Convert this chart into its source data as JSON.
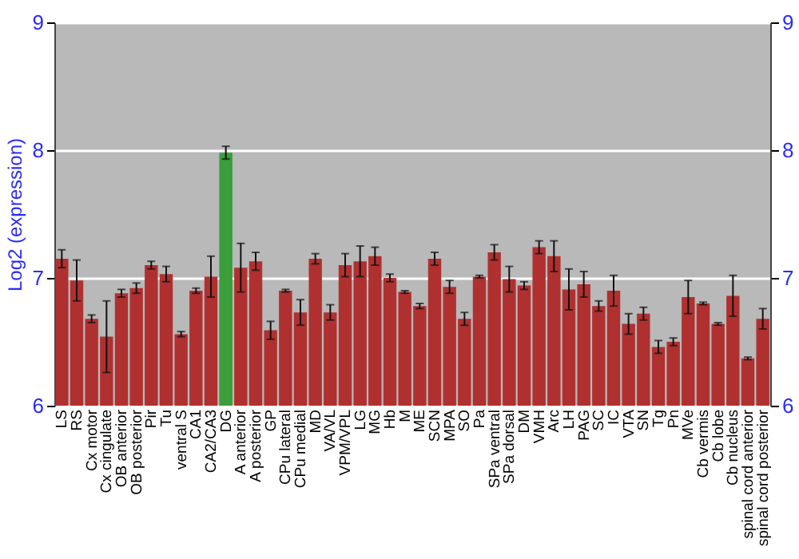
{
  "chart_data": {
    "type": "bar",
    "ylabel": "Log2 (expression)",
    "categories": [
      "LS",
      "RS",
      "Cx motor",
      "Cx cingulate",
      "OB anterior",
      "OB posterior",
      "Pir",
      "Tu",
      "ventral S",
      "CA1",
      "CA2/CA3",
      "DG",
      "A anterior",
      "A posterior",
      "GP",
      "CPu lateral",
      "CPu medial",
      "MD",
      "VA/VL",
      "VPM/VPL",
      "LG",
      "MG",
      "Hb",
      "M",
      "ME",
      "SCN",
      "MPA",
      "SO",
      "Pa",
      "SPa ventral",
      "SPa dorsal",
      "DM",
      "VMH",
      "Arc",
      "LH",
      "PAG",
      "SC",
      "IC",
      "VTA",
      "SN",
      "Tg",
      "Pn",
      "MVe",
      "Cb vermis",
      "Cb lobe",
      "Cb nucleus",
      "spinal cord anterior",
      "spinal cord posterior"
    ],
    "values": [
      7.15,
      6.98,
      6.68,
      6.54,
      6.88,
      6.92,
      7.1,
      7.03,
      6.56,
      6.9,
      7.01,
      7.98,
      7.08,
      7.13,
      6.59,
      6.9,
      6.73,
      7.15,
      6.73,
      7.1,
      7.13,
      7.17,
      7.0,
      6.89,
      6.78,
      7.15,
      6.93,
      6.68,
      7.01,
      7.2,
      6.99,
      6.94,
      7.24,
      7.17,
      6.91,
      6.95,
      6.78,
      6.9,
      6.64,
      6.72,
      6.46,
      6.5,
      6.85,
      6.8,
      6.64,
      6.86,
      6.37,
      6.68
    ],
    "errors": [
      0.07,
      0.16,
      0.03,
      0.28,
      0.03,
      0.04,
      0.03,
      0.06,
      0.02,
      0.02,
      0.16,
      0.05,
      0.19,
      0.07,
      0.07,
      0.01,
      0.1,
      0.04,
      0.06,
      0.09,
      0.12,
      0.07,
      0.03,
      0.01,
      0.02,
      0.05,
      0.05,
      0.05,
      0.01,
      0.06,
      0.1,
      0.03,
      0.05,
      0.12,
      0.16,
      0.1,
      0.04,
      0.12,
      0.08,
      0.05,
      0.05,
      0.03,
      0.13,
      0.01,
      0.01,
      0.16,
      0.01,
      0.08
    ],
    "colors": [
      "#b03030",
      "#b03030",
      "#b03030",
      "#b03030",
      "#b03030",
      "#b03030",
      "#b03030",
      "#b03030",
      "#b03030",
      "#b03030",
      "#b03030",
      "#3a9e3a",
      "#b03030",
      "#b03030",
      "#b03030",
      "#b03030",
      "#b03030",
      "#b03030",
      "#b03030",
      "#b03030",
      "#b03030",
      "#b03030",
      "#b03030",
      "#b03030",
      "#b03030",
      "#b03030",
      "#b03030",
      "#b03030",
      "#b03030",
      "#b03030",
      "#b03030",
      "#b03030",
      "#b03030",
      "#b03030",
      "#b03030",
      "#b03030",
      "#b03030",
      "#b03030",
      "#b03030",
      "#b03030",
      "#b03030",
      "#b03030",
      "#b03030",
      "#b03030",
      "#b03030",
      "#b03030",
      "#b03030",
      "#b03030"
    ],
    "ylim": [
      6,
      9
    ],
    "yticks": [
      6,
      7,
      8,
      9
    ],
    "y2lim": [
      6,
      9
    ],
    "y2ticks": [
      6,
      7,
      8,
      9
    ],
    "grid": "y"
  }
}
